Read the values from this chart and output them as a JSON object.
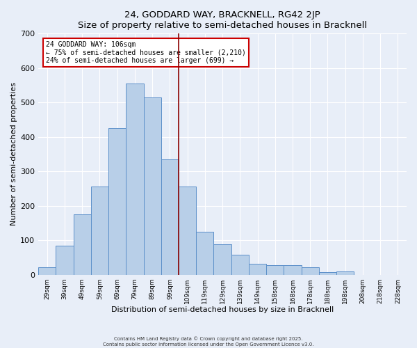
{
  "title": "24, GODDARD WAY, BRACKNELL, RG42 2JP",
  "subtitle": "Size of property relative to semi-detached houses in Bracknell",
  "xlabel": "Distribution of semi-detached houses by size in Bracknell",
  "ylabel": "Number of semi-detached properties",
  "bar_labels": [
    "29sqm",
    "39sqm",
    "49sqm",
    "59sqm",
    "69sqm",
    "79sqm",
    "89sqm",
    "99sqm",
    "109sqm",
    "119sqm",
    "129sqm",
    "139sqm",
    "149sqm",
    "158sqm",
    "168sqm",
    "178sqm",
    "188sqm",
    "198sqm",
    "208sqm",
    "218sqm",
    "228sqm"
  ],
  "bar_values": [
    22,
    85,
    175,
    255,
    425,
    555,
    515,
    335,
    255,
    125,
    88,
    58,
    32,
    28,
    27,
    21,
    8,
    9,
    0,
    0,
    0
  ],
  "bar_color": "#b8cfe8",
  "bar_edge_color": "#5b8fc9",
  "background_color": "#e8eef8",
  "grid_color": "#ffffff",
  "vline_color": "#8b0000",
  "annotation_title": "24 GODDARD WAY: 106sqm",
  "annotation_line1": "← 75% of semi-detached houses are smaller (2,210)",
  "annotation_line2": "24% of semi-detached houses are larger (699) →",
  "annotation_box_color": "#ffffff",
  "annotation_box_edge": "#cc0000",
  "ylim": [
    0,
    700
  ],
  "yticks": [
    0,
    100,
    200,
    300,
    400,
    500,
    600,
    700
  ],
  "footer_line1": "Contains HM Land Registry data © Crown copyright and database right 2025.",
  "footer_line2": "Contains public sector information licensed under the Open Government Licence v3.0."
}
